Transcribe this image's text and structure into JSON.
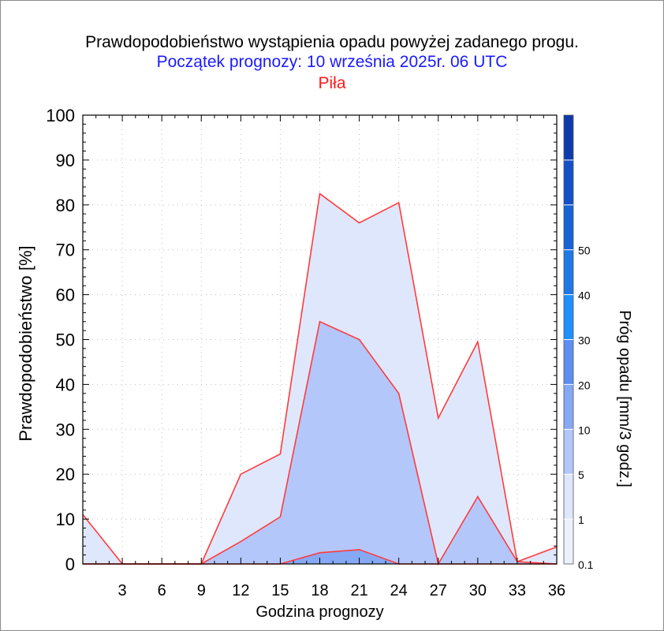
{
  "titles": {
    "line1": "Prawdopodobieństwo wystąpienia opadu powyżej zadanego progu.",
    "line2": "Początek prognozy: 10 września 2025r. 06 UTC",
    "line3": "Piła"
  },
  "colors": {
    "line1": "#000000",
    "line2": "#1a1aff",
    "line3": "#ff1a1a",
    "series_edge": "#ff3b3b"
  },
  "chart_data": {
    "type": "area",
    "xlabel": "Godzina prognozy",
    "ylabel": "Prawdopodobieństwo [%]",
    "xlim": [
      0,
      36
    ],
    "ylim": [
      0,
      100
    ],
    "x": [
      0,
      3,
      6,
      9,
      12,
      15,
      18,
      21,
      24,
      27,
      30,
      33,
      36
    ],
    "x_tick_labels": [
      "3",
      "6",
      "9",
      "12",
      "15",
      "18",
      "21",
      "24",
      "27",
      "30",
      "33",
      "36"
    ],
    "y_tick_labels": [
      "0",
      "10",
      "20",
      "30",
      "40",
      "50",
      "60",
      "70",
      "80",
      "90",
      "100"
    ],
    "grid": true,
    "series": [
      {
        "threshold": 0.1,
        "color": "#dfe7fc",
        "values": [
          11,
          0,
          0,
          0,
          20,
          24.5,
          82.5,
          76,
          80.5,
          32.5,
          49.5,
          0.5,
          3.8
        ]
      },
      {
        "threshold": 1,
        "color": "#b3c7fb",
        "values": [
          0,
          0,
          0,
          0,
          5,
          10.5,
          54,
          50,
          38,
          0,
          15,
          0.5,
          0
        ]
      },
      {
        "threshold": 5,
        "color": "#86a9f6",
        "values": [
          0,
          0,
          0,
          0,
          0,
          0,
          2.5,
          3.2,
          0,
          0,
          0,
          0,
          0
        ]
      }
    ],
    "colorbar": {
      "label": "Próg opadu [mm/3 godz.]",
      "tick_labels": [
        "0.1",
        "1",
        "5",
        "10",
        "20",
        "30",
        "40",
        "50"
      ],
      "colors": [
        "#ecf1fd",
        "#dfe7fc",
        "#b3c7fb",
        "#86a9f6",
        "#5c8ef4",
        "#1e90ff",
        "#1e78e6",
        "#1763d6",
        "#1450c8",
        "#0d3aac"
      ]
    }
  }
}
